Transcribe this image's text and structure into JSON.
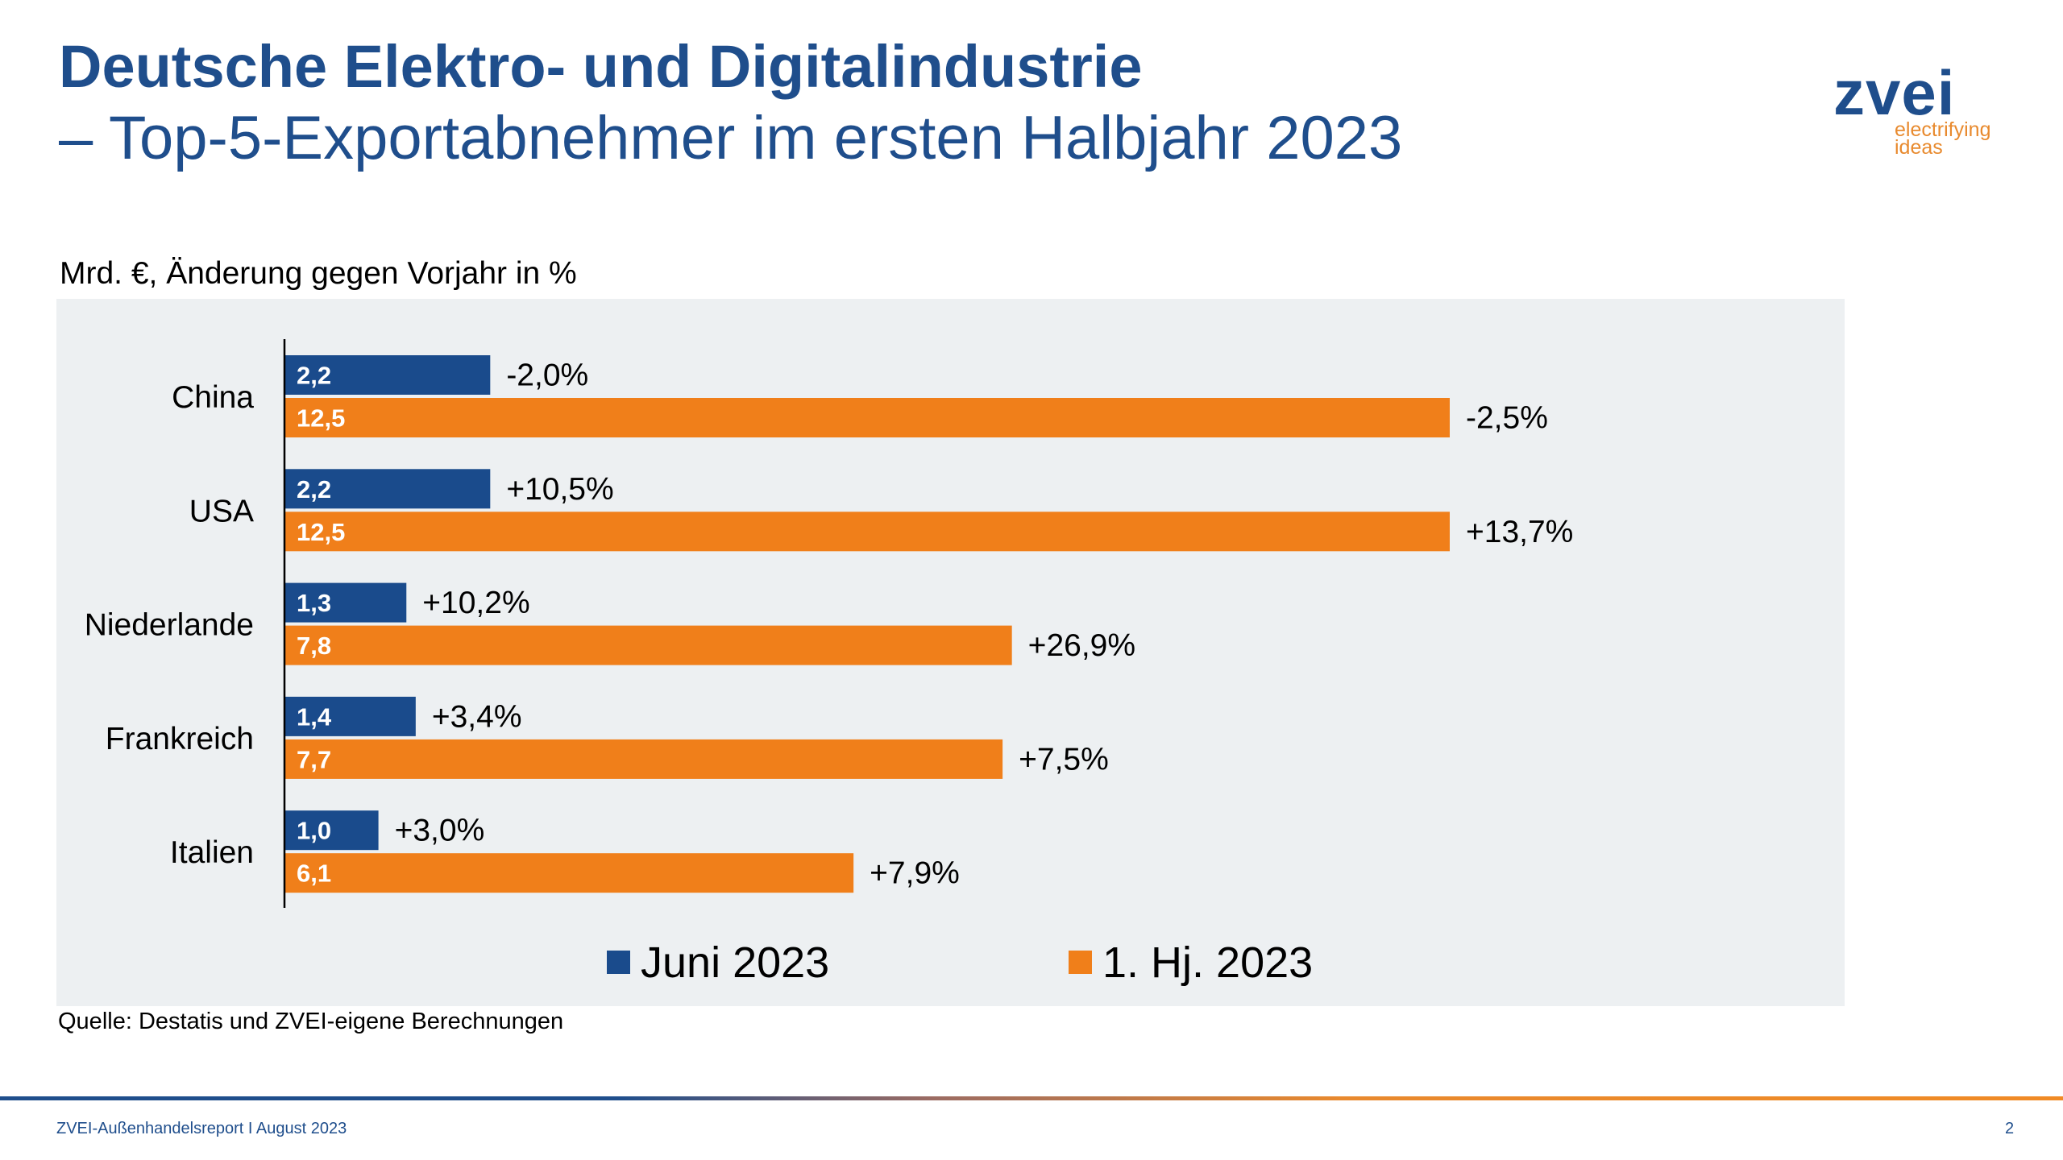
{
  "header": {
    "title": "Deutsche Elektro- und Digitalindustrie",
    "subtitle": "– Top-5-Exportabnehmer im ersten Halbjahr 2023"
  },
  "logo": {
    "wordmark": "zvei",
    "tagline_1": "electrifying",
    "tagline_2": "ideas"
  },
  "colors": {
    "blue": "#1a4b8c",
    "orange": "#f07f1a",
    "panel": "#edf0f2"
  },
  "chart_data": {
    "type": "bar",
    "orientation": "horizontal",
    "ylabel": "Mrd. €, Änderung gegen Vorjahr in %",
    "categories": [
      "China",
      "USA",
      "Niederlande",
      "Frankreich",
      "Italien"
    ],
    "series": [
      {
        "name": "Juni 2023",
        "color": "#1a4b8c",
        "values": [
          2.2,
          2.2,
          1.3,
          1.4,
          1.0
        ],
        "value_labels": [
          "2,2",
          "2,2",
          "1,3",
          "1,4",
          "1,0"
        ],
        "change_labels": [
          "-2,0%",
          "+10,5%",
          "+10,2%",
          "+3,4%",
          "+3,0%"
        ]
      },
      {
        "name": "1. Hj. 2023",
        "color": "#f07f1a",
        "values": [
          12.5,
          12.5,
          7.8,
          7.7,
          6.1
        ],
        "value_labels": [
          "12,5",
          "12,5",
          "7,8",
          "7,7",
          "6,1"
        ],
        "change_labels": [
          "-2,5%",
          "+13,7%",
          "+26,9%",
          "+7,5%",
          "+7,9%"
        ]
      }
    ],
    "xlim": [
      0,
      12.5
    ],
    "legend": "bottom",
    "grid": false
  },
  "source": "Quelle: Destatis und ZVEI-eigene Berechnungen",
  "footer": {
    "text": "ZVEI-Außenhandelsreport I August 2023",
    "page": "2"
  }
}
